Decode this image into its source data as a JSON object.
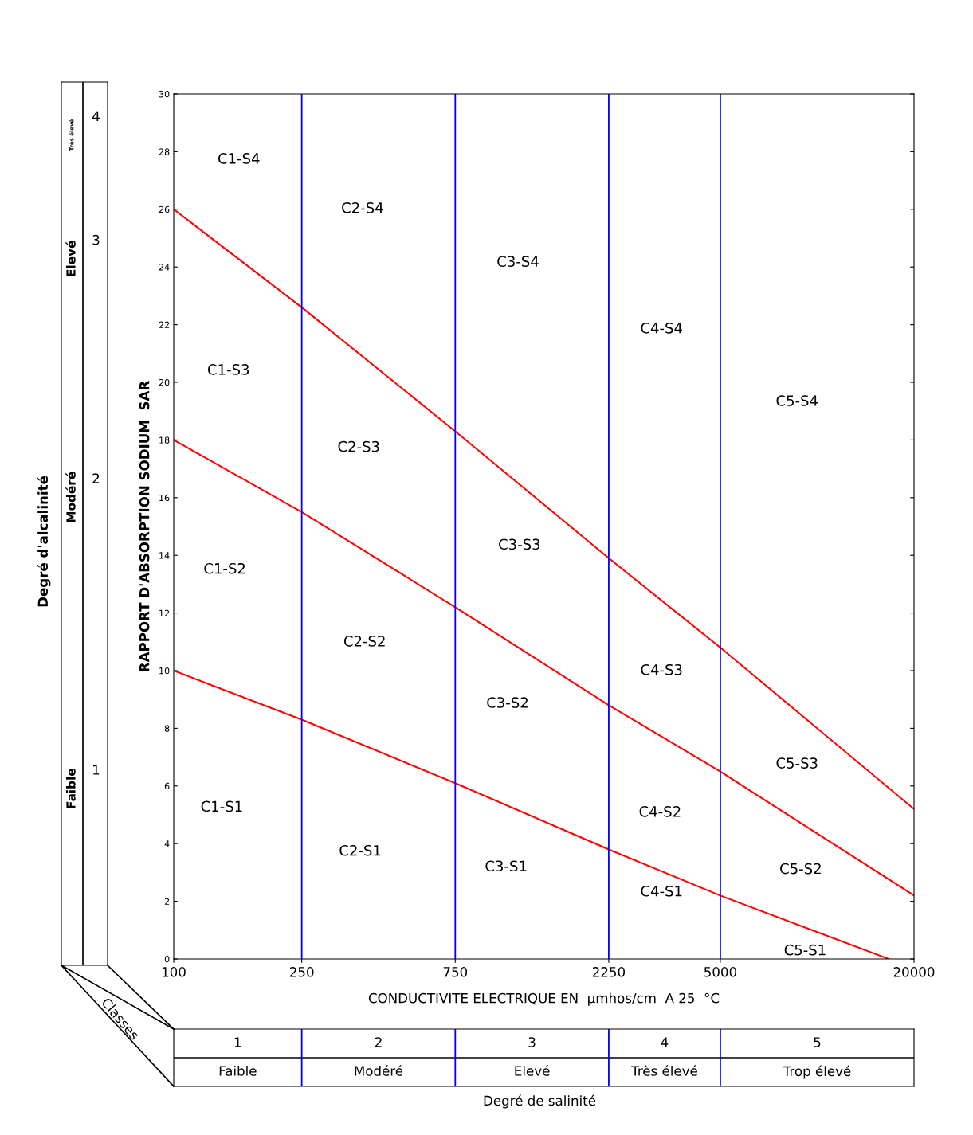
{
  "chart_data": {
    "type": "line",
    "ylabel": "RAPPORT D'ABSORPTION SODIUM  SAR",
    "xlabel": "CONDUCTIVITE ELECTRIQUE EN  µmhos/cm  A 25  °C",
    "log": "x",
    "grid": false,
    "xlim": [
      100,
      20000
    ],
    "xticks": [
      100,
      250,
      750,
      2250,
      5000,
      20000
    ],
    "ylim": [
      0,
      30
    ],
    "yticks": [
      0,
      2,
      4,
      6,
      8,
      10,
      12,
      14,
      16,
      18,
      20,
      22,
      24,
      26,
      28,
      30
    ],
    "series": [
      {
        "color": "#ff0000",
        "x": [
          100,
          250,
          750,
          2250,
          5000,
          16700
        ],
        "values": [
          10,
          8.3,
          6.1,
          3.8,
          2.2,
          0
        ]
      },
      {
        "color": "#ff0000",
        "x": [
          100,
          250,
          750,
          2250,
          5000,
          20000
        ],
        "values": [
          18,
          15.5,
          12.2,
          8.8,
          6.5,
          2.2
        ]
      },
      {
        "color": "#ff0000",
        "x": [
          100,
          250,
          750,
          2250,
          5000,
          20000
        ],
        "values": [
          26,
          22.6,
          18.3,
          13.9,
          10.8,
          5.2
        ]
      }
    ],
    "ref_lines": [
      {
        "axis": "x",
        "value": 250,
        "color": "#0000ff"
      },
      {
        "axis": "x",
        "value": 750,
        "color": "#0000ff"
      },
      {
        "axis": "x",
        "value": 2250,
        "color": "#0000ff"
      },
      {
        "axis": "x",
        "value": 5000,
        "color": "#0000ff"
      }
    ],
    "annotations": [
      "C1-S4",
      "C2-S4",
      "C3-S4",
      "C4-S4",
      "C5-S4",
      "C1-S3",
      "C2-S3",
      "C3-S3",
      "C4-S3",
      "C5-S3",
      "C1-S2",
      "C2-S2",
      "C3-S2",
      "C4-S2",
      "C5-S2",
      "C1-S1",
      "C2-S1",
      "C3-S1",
      "C4-S1",
      "C5-S1",
      "Classes",
      "Degré de salinité",
      "1",
      "2",
      "3",
      "4",
      "5",
      "Faible",
      "Modéré",
      "Elevé",
      "Très élevé",
      "Trop élevé",
      "Degré d'alcalinité",
      "1",
      "2",
      "3",
      "4",
      "Faible",
      "Modéré",
      "Elevé",
      "Très élevé"
    ]
  }
}
